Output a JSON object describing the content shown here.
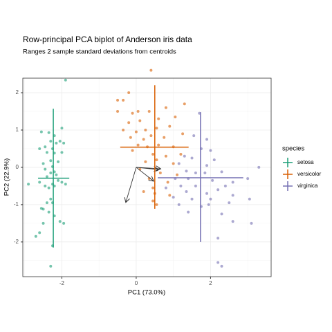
{
  "chart_data": {
    "type": "scatter",
    "title": "Row-principal PCA biplot of Anderson iris data",
    "subtitle": "Ranges 2 sample standard deviations from centroids",
    "x_label": "PC1 (73.0%)",
    "y_label": "PC2 (22.9%)",
    "legend_title": "species",
    "legend_position": "right",
    "grid": true,
    "xlim": [
      -3.05,
      3.63
    ],
    "ylim": [
      -2.93,
      2.39
    ],
    "xticks": [
      -2,
      0,
      2
    ],
    "yticks": [
      -2,
      -1,
      0,
      1,
      2
    ],
    "series": [
      {
        "name": "setosa",
        "color": "#1b9e77",
        "x": [
          -1.9,
          -2.55,
          -2.35,
          -2.0,
          -2.2,
          -2.3,
          -2.45,
          -2.6,
          -2.15,
          -2.05,
          -1.95,
          -2.25,
          -2.4,
          -2.2,
          -2.0,
          -2.3,
          -2.5,
          -2.1,
          -2.25,
          -2.45,
          -2.2,
          -2.3,
          -2.15,
          -2.4,
          -2.9,
          -2.1,
          -2.0,
          -1.9,
          -2.25,
          -2.45,
          -2.35,
          -2.2,
          -2.6,
          -2.3,
          -2.4,
          -2.25,
          -2.55,
          -2.5,
          -2.35,
          -2.2,
          -2.05,
          -2.5,
          -1.95,
          -2.6,
          -2.7,
          -2.25,
          -2.3
        ],
        "y": [
          2.34,
          0.95,
          0.93,
          1.05,
          0.85,
          0.7,
          0.55,
          0.5,
          0.65,
          0.7,
          0.65,
          0.5,
          0.4,
          0.38,
          0.4,
          0.18,
          0.1,
          0.15,
          0.02,
          -0.05,
          -0.12,
          -0.15,
          -0.2,
          -0.25,
          -0.45,
          -0.35,
          -0.4,
          -0.45,
          -0.45,
          -0.5,
          -0.55,
          -0.5,
          -0.4,
          -0.85,
          -0.95,
          -0.95,
          -1.1,
          -1.12,
          -1.2,
          -1.3,
          -1.45,
          -1.5,
          -1.5,
          -1.75,
          -1.85,
          -2.1,
          -2.65
        ],
        "crosshair": {
          "x": [
            -2.64,
            -1.8
          ],
          "y": [
            -2.15,
            1.57
          ],
          "cx": -2.23,
          "cy": -0.29
        }
      },
      {
        "name": "versicolor",
        "color": "#d95f02",
        "x": [
          -0.2,
          -0.35,
          -0.5,
          -0.5,
          0.4,
          -0.1,
          0.05,
          0.35,
          0.8,
          1.3,
          -0.2,
          0.1,
          0.6,
          1.05,
          -0.35,
          0.0,
          0.25,
          0.55,
          0.9,
          -0.15,
          0.2,
          0.4,
          0.75,
          1.25,
          0.05,
          0.3,
          0.6,
          1.0,
          -0.1,
          0.45,
          0.8,
          1.2,
          0.25,
          0.55,
          1.0,
          0.1,
          0.65,
          1.1,
          0.35,
          0.85,
          0.45,
          0.2,
          0.5,
          0.9,
          0.45,
          0.55
        ],
        "y": [
          2.0,
          1.8,
          1.8,
          1.5,
          2.6,
          1.45,
          1.5,
          1.5,
          1.6,
          1.7,
          1.2,
          1.25,
          1.3,
          1.35,
          1.0,
          0.95,
          1.0,
          1.05,
          1.1,
          0.8,
          0.75,
          0.85,
          0.8,
          0.9,
          0.6,
          0.55,
          0.6,
          0.55,
          0.45,
          0.35,
          0.3,
          0.35,
          0.15,
          0.2,
          0.1,
          -0.05,
          -0.15,
          -0.2,
          -0.3,
          -0.4,
          -0.55,
          -0.65,
          -0.7,
          -0.75,
          -0.9,
          -1.0
        ],
        "crosshair": {
          "x": [
            -0.43,
            1.41
          ],
          "y": [
            -1.11,
            2.2
          ],
          "cx": 0.5,
          "cy": 0.54
        }
      },
      {
        "name": "virginica",
        "color": "#7570b3",
        "x": [
          1.7,
          1.55,
          1.9,
          1.75,
          2.0,
          1.3,
          1.5,
          2.1,
          1.15,
          1.9,
          3.3,
          1.35,
          1.6,
          1.85,
          2.3,
          1.05,
          1.4,
          2.05,
          2.6,
          3.0,
          1.2,
          1.6,
          2.4,
          2.2,
          0.8,
          1.35,
          1.9,
          2.6,
          1.0,
          1.5,
          2.0,
          2.5,
          3.05,
          1.15,
          1.75,
          1.95,
          1.4,
          2.3,
          2.6,
          3.1,
          2.2,
          2.3,
          2.2
        ],
        "y": [
          1.45,
          0.85,
          0.75,
          0.5,
          0.45,
          0.3,
          0.25,
          0.2,
          0.1,
          0.05,
          0.0,
          -0.1,
          -0.15,
          -0.15,
          -0.12,
          -0.3,
          -0.3,
          -0.35,
          -0.4,
          -0.3,
          -0.5,
          -0.5,
          -0.5,
          -0.6,
          -0.55,
          -0.65,
          -0.7,
          -0.75,
          -0.8,
          -0.85,
          -0.85,
          -0.95,
          -0.85,
          -1.0,
          -1.05,
          -1.0,
          -1.2,
          -1.25,
          -1.45,
          -1.5,
          -1.9,
          -2.65,
          -2.55
        ],
        "crosshair": {
          "x": [
            0.58,
            2.88
          ],
          "y": [
            -2.0,
            1.48
          ],
          "cx": 1.73,
          "cy": -0.28
        }
      }
    ],
    "vectors": [
      {
        "x": -0.28,
        "y": -0.94
      },
      {
        "x": 0.66,
        "y": -0.04
      },
      {
        "x": 0.6,
        "y": -0.06
      },
      {
        "x": 0.47,
        "y": -0.37
      }
    ]
  }
}
